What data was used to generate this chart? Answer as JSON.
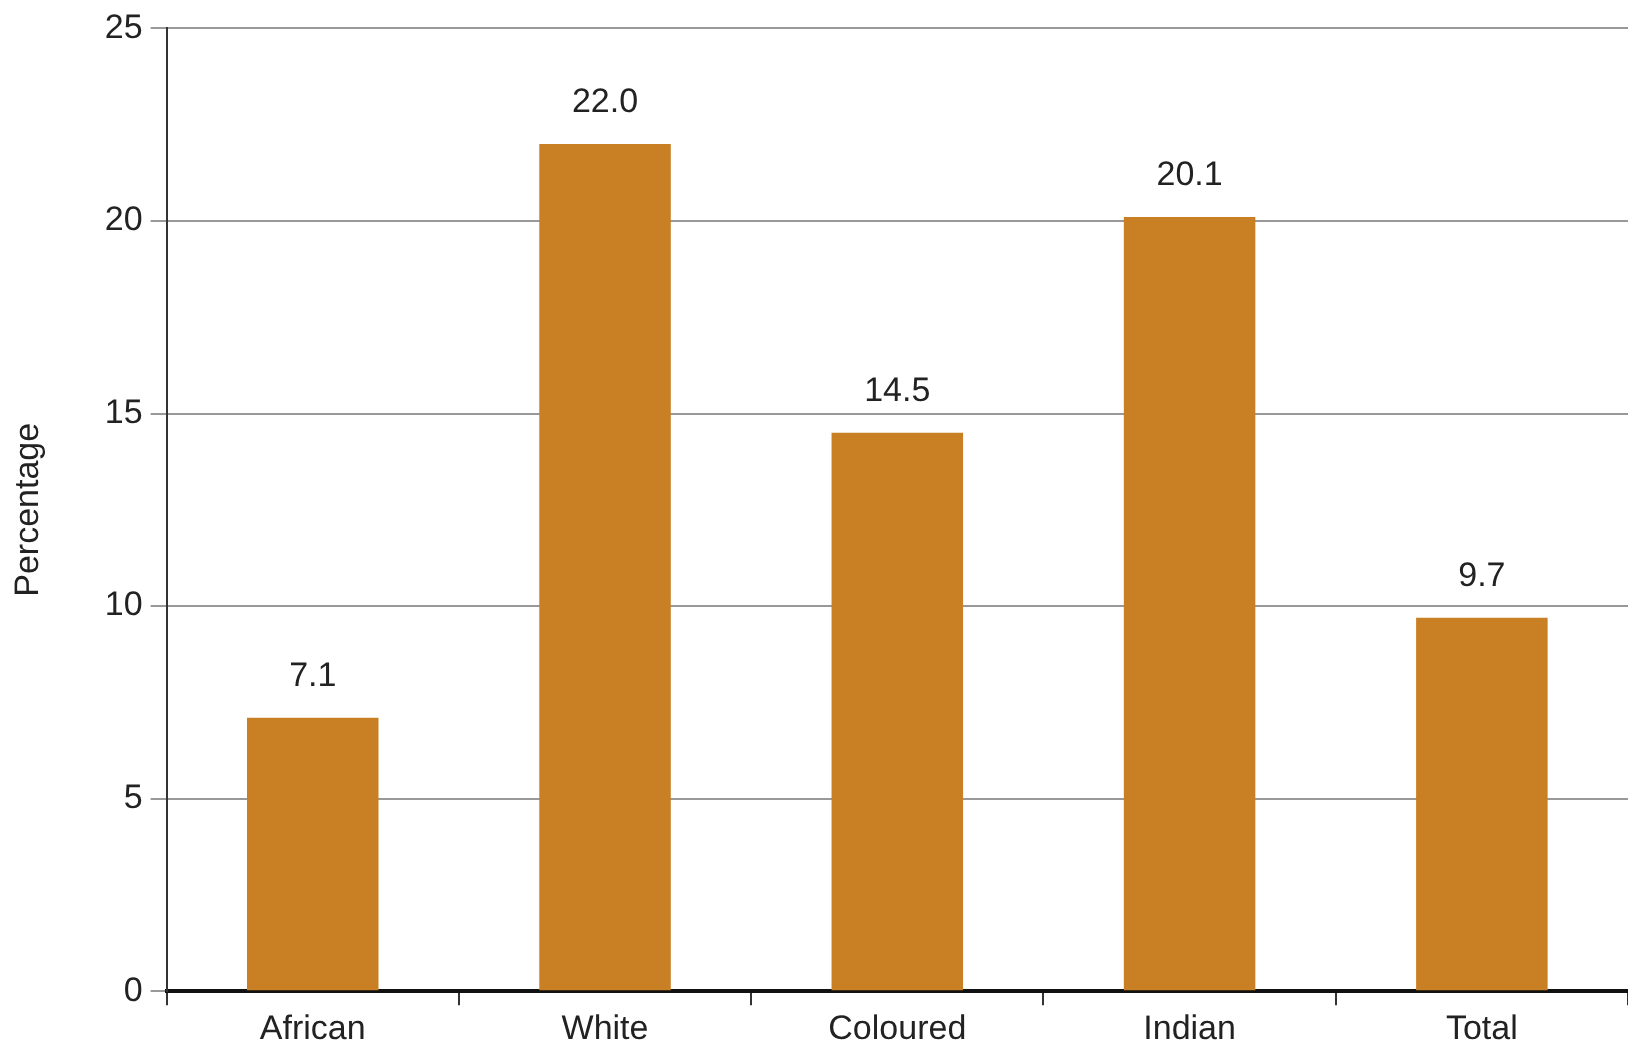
{
  "chart_data": {
    "type": "bar",
    "ylabel": "Percentage",
    "categories": [
      "African",
      "White",
      "Coloured",
      "Indian",
      "Total"
    ],
    "values": [
      7.1,
      22.0,
      14.5,
      20.1,
      9.7
    ],
    "value_labels": [
      "7.1",
      "22.0",
      "14.5",
      "20.1",
      "9.7"
    ],
    "color": "#c98024",
    "ylim": [
      0,
      25
    ],
    "yticks": [
      0,
      5,
      10,
      15,
      20,
      25
    ],
    "grid": "y",
    "legend": false
  }
}
